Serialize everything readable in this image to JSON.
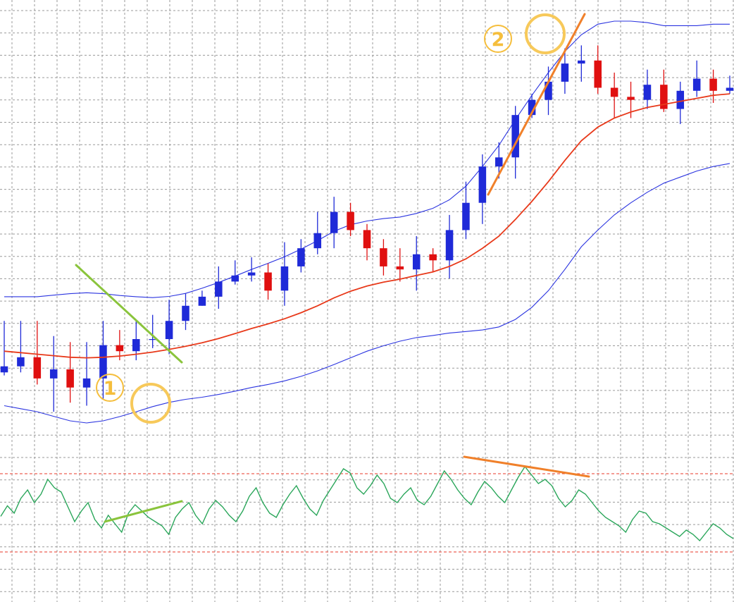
{
  "chart_data": {
    "type": "candlestick-with-oscillator",
    "price_panel": {
      "candle_up_color": "#1f2ad8",
      "candle_down_color": "#e01010",
      "bollinger_color": "#2b34e0",
      "moving_average_color": "#e8391a",
      "candles": [
        [
          0.3,
          0.5,
          2.0,
          0.2
        ],
        [
          0.5,
          0.8,
          2.0,
          0.3
        ],
        [
          0.8,
          0.1,
          2.0,
          -0.1
        ],
        [
          0.1,
          0.4,
          1.5,
          -1.0
        ],
        [
          0.4,
          -0.2,
          1.3,
          -0.7
        ],
        [
          -0.2,
          0.1,
          1.3,
          -0.8
        ],
        [
          0.1,
          1.2,
          2.0,
          -0.6
        ],
        [
          1.2,
          1.0,
          1.7,
          0.7
        ],
        [
          1.0,
          1.4,
          2.0,
          0.7
        ],
        [
          1.4,
          1.4,
          2.2,
          1.1
        ],
        [
          1.4,
          2.0,
          2.7,
          0.9
        ],
        [
          2.0,
          2.5,
          2.9,
          1.7
        ],
        [
          2.5,
          2.8,
          3.0,
          2.5
        ],
        [
          2.8,
          3.3,
          3.8,
          2.4
        ],
        [
          3.3,
          3.5,
          4.0,
          3.2
        ],
        [
          3.5,
          3.6,
          4.1,
          3.3
        ],
        [
          3.6,
          3.0,
          3.9,
          2.7
        ],
        [
          3.0,
          3.8,
          4.6,
          2.5
        ],
        [
          3.8,
          4.4,
          4.7,
          3.6
        ],
        [
          4.4,
          4.9,
          5.6,
          4.2
        ],
        [
          4.9,
          5.6,
          6.1,
          4.4
        ],
        [
          5.6,
          5.0,
          5.9,
          4.8
        ],
        [
          5.0,
          4.4,
          5.2,
          4.0
        ],
        [
          4.4,
          3.8,
          4.7,
          3.5
        ],
        [
          3.8,
          3.7,
          4.4,
          3.3
        ],
        [
          3.7,
          4.2,
          4.8,
          3.0
        ],
        [
          4.2,
          4.0,
          4.4,
          3.6
        ],
        [
          4.0,
          5.0,
          5.5,
          3.4
        ],
        [
          5.0,
          5.9,
          6.6,
          4.7
        ],
        [
          5.9,
          7.1,
          7.5,
          5.2
        ],
        [
          7.1,
          7.4,
          7.9,
          6.7
        ],
        [
          7.4,
          8.8,
          9.1,
          6.7
        ],
        [
          8.8,
          9.3,
          9.5,
          8.7
        ],
        [
          9.3,
          9.9,
          10.4,
          8.8
        ],
        [
          9.9,
          10.5,
          11.0,
          9.5
        ],
        [
          10.5,
          10.6,
          11.1,
          9.9
        ],
        [
          10.6,
          9.7,
          11.1,
          9.5
        ],
        [
          9.7,
          9.4,
          10.2,
          8.7
        ],
        [
          9.4,
          9.3,
          9.9,
          8.7
        ],
        [
          9.3,
          9.8,
          10.3,
          9.0
        ],
        [
          9.8,
          9.0,
          10.3,
          8.9
        ],
        [
          9.0,
          9.6,
          9.9,
          8.5
        ],
        [
          9.6,
          10.0,
          10.6,
          9.4
        ],
        [
          10.0,
          9.6,
          10.3,
          9.2
        ],
        [
          9.6,
          9.7,
          10.1,
          9.5
        ]
      ],
      "bollinger_middle": [
        1.0,
        0.95,
        0.9,
        0.85,
        0.8,
        0.78,
        0.8,
        0.84,
        0.9,
        0.97,
        1.06,
        1.16,
        1.28,
        1.42,
        1.58,
        1.75,
        1.9,
        2.07,
        2.27,
        2.5,
        2.76,
        2.98,
        3.15,
        3.28,
        3.38,
        3.5,
        3.62,
        3.8,
        4.05,
        4.4,
        4.8,
        5.35,
        5.95,
        6.6,
        7.3,
        7.95,
        8.4,
        8.7,
        8.9,
        9.05,
        9.15,
        9.25,
        9.35,
        9.45,
        9.5
      ],
      "bollinger_width": [
        1.8,
        1.85,
        1.9,
        2.0,
        2.1,
        2.15,
        2.1,
        2.0,
        1.9,
        1.8,
        1.75,
        1.75,
        1.8,
        1.85,
        1.9,
        1.95,
        2.0,
        2.05,
        2.1,
        2.15,
        2.2,
        2.2,
        2.15,
        2.1,
        2.05,
        2.05,
        2.1,
        2.2,
        2.4,
        2.7,
        3.0,
        3.3,
        3.5,
        3.6,
        3.6,
        3.5,
        3.4,
        3.2,
        3.0,
        2.8,
        2.6,
        2.5,
        2.4,
        2.35,
        2.3
      ]
    },
    "oscillator_panel": {
      "line_color": "#2aa65a",
      "upper_level_color": "#e8392a",
      "lower_level_color": "#e8392a",
      "values": [
        45,
        55,
        48,
        62,
        70,
        58,
        66,
        80,
        72,
        68,
        54,
        40,
        50,
        58,
        42,
        34,
        46,
        38,
        30,
        48,
        56,
        50,
        44,
        40,
        36,
        28,
        44,
        52,
        58,
        46,
        38,
        52,
        60,
        54,
        46,
        40,
        50,
        64,
        72,
        58,
        48,
        44,
        56,
        66,
        74,
        62,
        52,
        46,
        60,
        70,
        80,
        90,
        86,
        72,
        66,
        74,
        84,
        76,
        62,
        58,
        66,
        72,
        60,
        56,
        64,
        76,
        88,
        80,
        70,
        62,
        56,
        68,
        78,
        72,
        64,
        58,
        70,
        82,
        92,
        84,
        76,
        80,
        74,
        62,
        54,
        60,
        70,
        66,
        58,
        50,
        44,
        40,
        36,
        30,
        42,
        50,
        48,
        40,
        38,
        34,
        30,
        26,
        32,
        28,
        22,
        30,
        38,
        34,
        28,
        24
      ]
    },
    "annotations": {
      "marker_1_label": "1",
      "marker_2_label": "2",
      "price_trend_1_color": "#8ac43c",
      "price_trend_2_color": "#f0802a",
      "oscillator_trend_1_color": "#8ac43c",
      "oscillator_trend_2_color": "#f0802a",
      "marker_circle_color": "#f7c95a"
    }
  }
}
